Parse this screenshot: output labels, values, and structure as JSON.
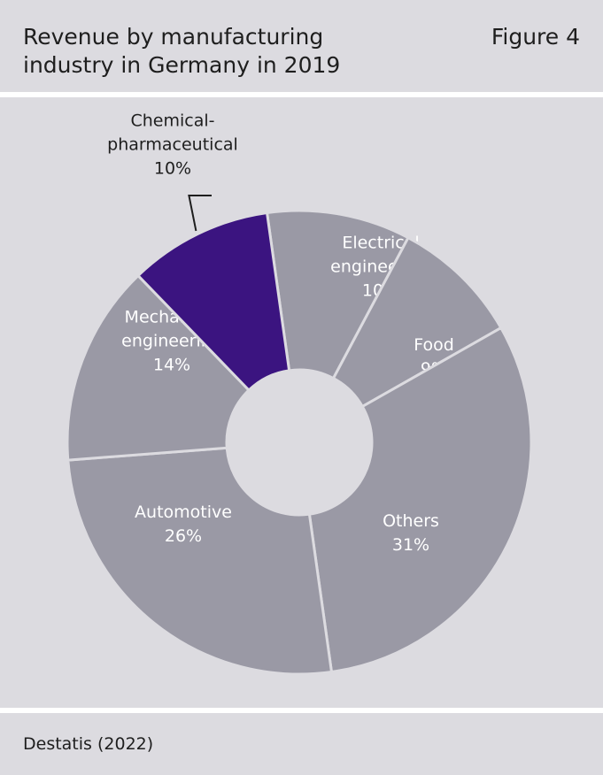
{
  "header": {
    "title_line1": "Revenue by manufacturing",
    "title_line2": "industry in Germany in 2019",
    "figure_label": "Figure 4"
  },
  "footer": {
    "source": "Destatis (2022)"
  },
  "colors": {
    "panel_bg": "#dcdbe0",
    "slice_default": "#9a99a5",
    "slice_highlight": "#3b1480",
    "divider": "#ffffff"
  },
  "chart_data": {
    "type": "pie",
    "title": "Revenue by manufacturing industry in Germany in 2019",
    "donut": true,
    "unit": "%",
    "slices": [
      {
        "label_lines": [
          "Electrical",
          "engineering"
        ],
        "value": 10,
        "value_label": "10%",
        "highlight": false
      },
      {
        "label_lines": [
          "Food"
        ],
        "value": 9,
        "value_label": "9%",
        "highlight": false
      },
      {
        "label_lines": [
          "Others"
        ],
        "value": 31,
        "value_label": "31%",
        "highlight": false
      },
      {
        "label_lines": [
          "Automotive"
        ],
        "value": 26,
        "value_label": "26%",
        "highlight": false
      },
      {
        "label_lines": [
          "Mechanical",
          "engineering"
        ],
        "value": 14,
        "value_label": "14%",
        "highlight": false
      },
      {
        "label_lines": [
          "Chemical-",
          "pharmaceutical"
        ],
        "value": 10,
        "value_label": "10%",
        "highlight": true
      }
    ]
  }
}
